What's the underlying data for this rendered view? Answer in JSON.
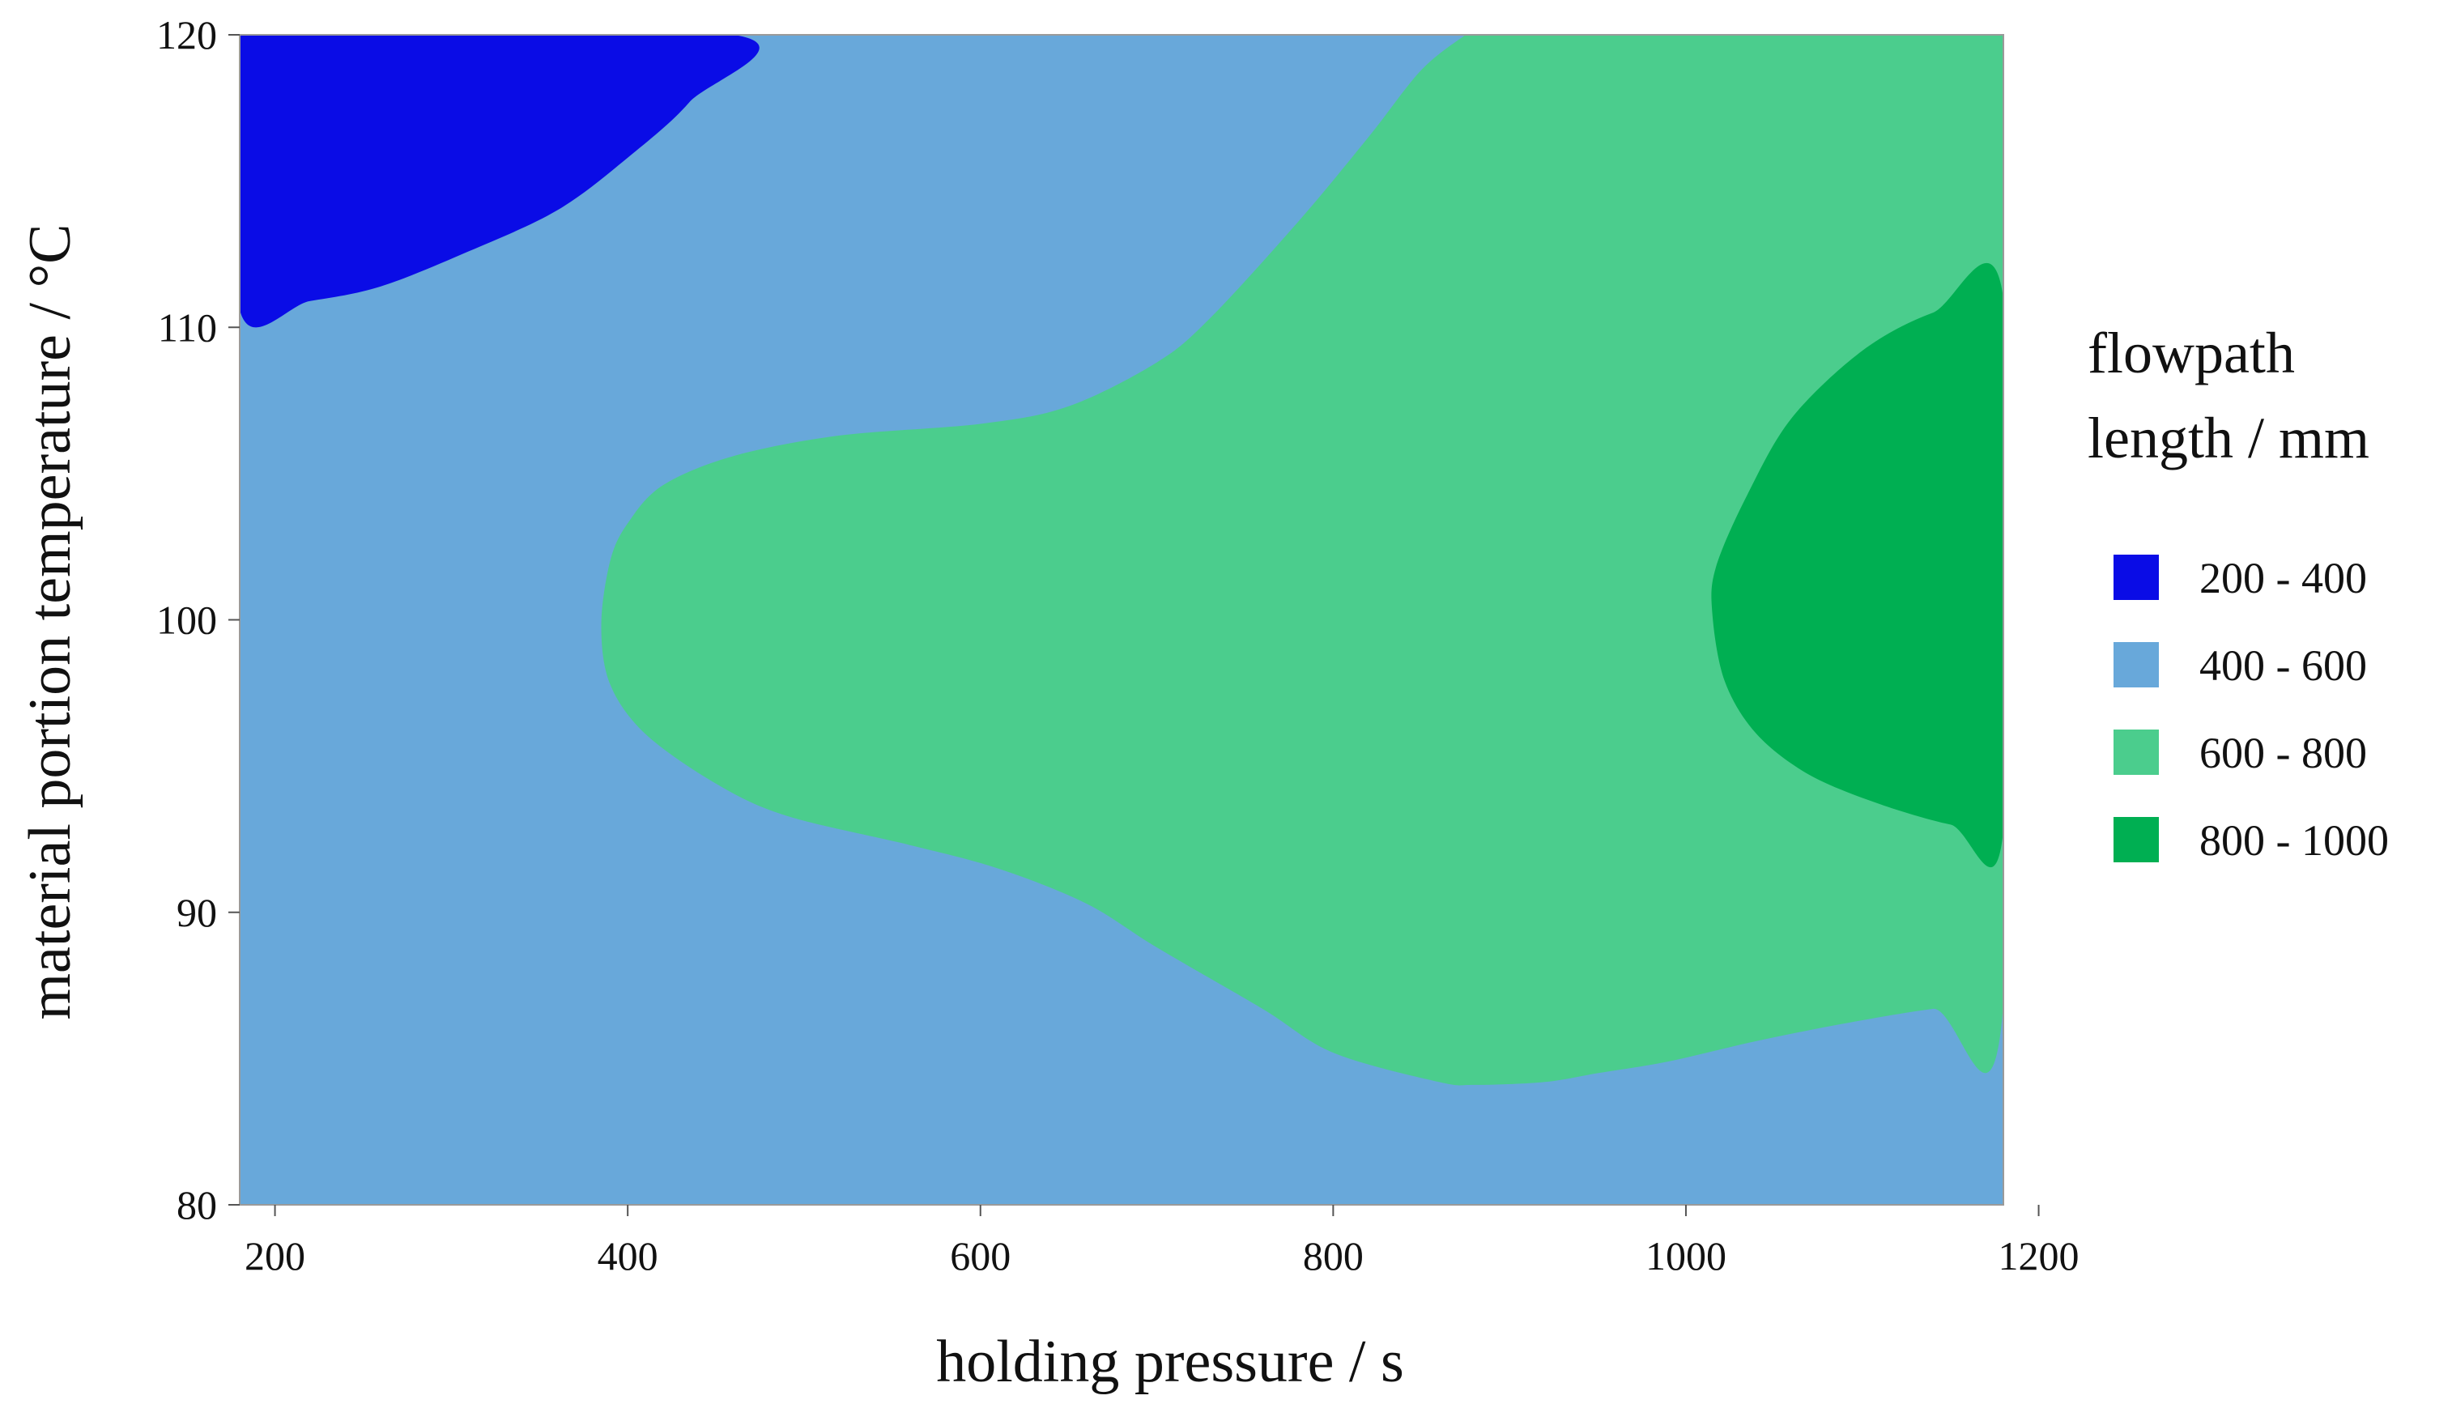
{
  "chart_data": {
    "type": "contour",
    "xlabel": "holding pressure / s",
    "ylabel": "material portion temperature / °C",
    "xlim": [
      180,
      1180
    ],
    "ylim": [
      80,
      120
    ],
    "x_ticks": [
      200,
      400,
      600,
      800,
      1000,
      1200
    ],
    "y_ticks": [
      80,
      90,
      100,
      110,
      120
    ],
    "grid": false,
    "legend": {
      "title_lines": [
        "flowpath",
        "length / mm"
      ],
      "position": "right"
    },
    "levels": [
      {
        "label": "200 - 400",
        "min": 200,
        "max": 400,
        "color": "#0A0CE6"
      },
      {
        "label": "400 - 600",
        "min": 400,
        "max": 600,
        "color": "#68A8DA"
      },
      {
        "label": "600 - 800",
        "min": 600,
        "max": 800,
        "color": "#4BCD8D"
      },
      {
        "label": "800 - 1000",
        "min": 800,
        "max": 1000,
        "color": "#00AF52"
      }
    ],
    "background_level": "400 - 600",
    "regions": [
      {
        "level": "200 - 400",
        "boundary": [
          [
            180,
            120
          ],
          [
            460,
            120
          ],
          [
            435,
            117.7
          ],
          [
            400,
            115.8
          ],
          [
            360,
            114
          ],
          [
            310,
            112.6
          ],
          [
            260,
            111.4
          ],
          [
            220,
            110.9
          ],
          [
            180,
            110.6
          ]
        ]
      },
      {
        "level": "600 - 800",
        "boundary": [
          [
            875,
            120
          ],
          [
            1180,
            120
          ],
          [
            1180,
            86.9
          ],
          [
            1140,
            86.7
          ],
          [
            1090,
            86.2
          ],
          [
            1040,
            85.6
          ],
          [
            990,
            84.9
          ],
          [
            950,
            84.5
          ],
          [
            920,
            84.2
          ],
          [
            880,
            84.1
          ],
          [
            860,
            84.2
          ],
          [
            800,
            85.2
          ],
          [
            760,
            86.7
          ],
          [
            700,
            88.8
          ],
          [
            660,
            90.3
          ],
          [
            610,
            91.5
          ],
          [
            560,
            92.3
          ],
          [
            490,
            93.3
          ],
          [
            450,
            94.4
          ],
          [
            410,
            96.1
          ],
          [
            390,
            97.8
          ],
          [
            385,
            99.8
          ],
          [
            390,
            102
          ],
          [
            400,
            103.3
          ],
          [
            420,
            104.6
          ],
          [
            460,
            105.6
          ],
          [
            520,
            106.3
          ],
          [
            600,
            106.7
          ],
          [
            650,
            107.3
          ],
          [
            700,
            108.8
          ],
          [
            730,
            110.3
          ],
          [
            780,
            113.6
          ],
          [
            820,
            116.5
          ],
          [
            850,
            118.8
          ],
          [
            875,
            120
          ]
        ]
      },
      {
        "level": "800 - 1000",
        "boundary": [
          [
            1180,
            111
          ],
          [
            1140,
            110.5
          ],
          [
            1100,
            109.2
          ],
          [
            1060,
            106.9
          ],
          [
            1035,
            104.3
          ],
          [
            1017,
            101.8
          ],
          [
            1015,
            100.2
          ],
          [
            1022,
            97.9
          ],
          [
            1040,
            96.1
          ],
          [
            1070,
            94.7
          ],
          [
            1110,
            93.7
          ],
          [
            1150,
            93
          ],
          [
            1180,
            92.8
          ]
        ]
      }
    ]
  }
}
